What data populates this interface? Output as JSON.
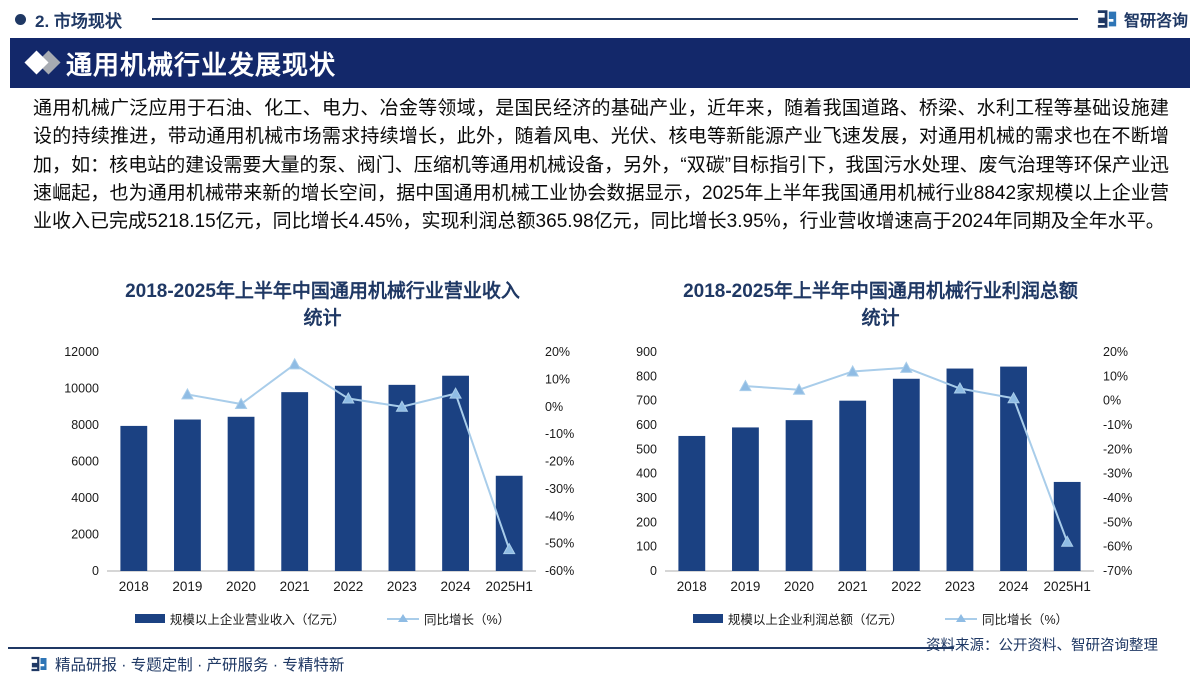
{
  "header": {
    "section_label": "2. 市场现状",
    "brand_name": "智研咨询"
  },
  "banner": {
    "title": "通用机械行业发展现状"
  },
  "paragraph": "通用机械广泛应用于石油、化工、电力、冶金等领域，是国民经济的基础产业，近年来，随着我国道路、桥梁、水利工程等基础设施建设的持续推进，带动通用机械市场需求持续增长，此外，随着风电、光伏、核电等新能源产业飞速发展，对通用机械的需求也在不断增加，如：核电站的建设需要大量的泵、阀门、压缩机等通用机械设备，另外，“双碳”目标指引下，我国污水处理、废气治理等环保产业迅速崛起，也为通用机械带来新的增长空间，据中国通用机械工业协会数据显示，2025年上半年我国通用机械行业8842家规模以上企业营业收入已完成5218.15亿元，同比增长4.45%，实现利润总额365.98亿元，同比增长3.95%，行业营收增速高于2024年同期及全年水平。",
  "chart_data": [
    {
      "type": "bar",
      "title": "2018-2025年上半年中国通用机械行业营业收入统计",
      "title_lines": [
        "2018-2025年上半年中国通用机械行业营业收入",
        "统计"
      ],
      "categories": [
        "2018",
        "2019",
        "2020",
        "2021",
        "2022",
        "2023",
        "2024",
        "2025H1"
      ],
      "series": [
        {
          "name": "规模以上企业营业收入（亿元）",
          "type": "bar",
          "axis": "left",
          "values": [
            7950,
            8300,
            8450,
            9800,
            10150,
            10200,
            10700,
            5218
          ]
        },
        {
          "name": "同比增长（%）",
          "type": "line",
          "axis": "right",
          "values": [
            null,
            4.5,
            1,
            15.5,
            3,
            0,
            4.8,
            -52
          ]
        }
      ],
      "left_axis": {
        "range": [
          0,
          12000
        ],
        "step": 2000
      },
      "right_axis": {
        "range": [
          -60,
          20
        ],
        "step": 10,
        "format": "percent"
      },
      "grid": false,
      "legend_position": "bottom"
    },
    {
      "type": "bar",
      "title": "2018-2025年上半年中国通用机械行业利润总额统计",
      "title_lines": [
        "2018-2025年上半年中国通用机械行业利润总额",
        "统计"
      ],
      "categories": [
        "2018",
        "2019",
        "2020",
        "2021",
        "2022",
        "2023",
        "2024",
        "2025H1"
      ],
      "series": [
        {
          "name": "规模以上企业利润总额（亿元）",
          "type": "bar",
          "axis": "left",
          "values": [
            555,
            590,
            620,
            700,
            790,
            832,
            840,
            366
          ]
        },
        {
          "name": "同比增长（%）",
          "type": "line",
          "axis": "right",
          "values": [
            null,
            6,
            4.5,
            12,
            13.5,
            5,
            1,
            -58
          ]
        }
      ],
      "left_axis": {
        "range": [
          0,
          900
        ],
        "step": 100
      },
      "right_axis": {
        "range": [
          -70,
          20
        ],
        "step": 10,
        "format": "percent"
      },
      "grid": false,
      "legend_position": "bottom"
    }
  ],
  "source_note": "资料来源：公开资料、智研咨询整理",
  "footer": {
    "tagline": "精品研报 · 专题定制 · 产研服务 · 专精特新"
  },
  "colors": {
    "navy_text": "#1F3864",
    "banner_bg": "#13286A",
    "bar": "#1B4182",
    "line": "#A9CDEA",
    "marker": "#8FBCE4",
    "axis_line": "#C8C8C8"
  }
}
